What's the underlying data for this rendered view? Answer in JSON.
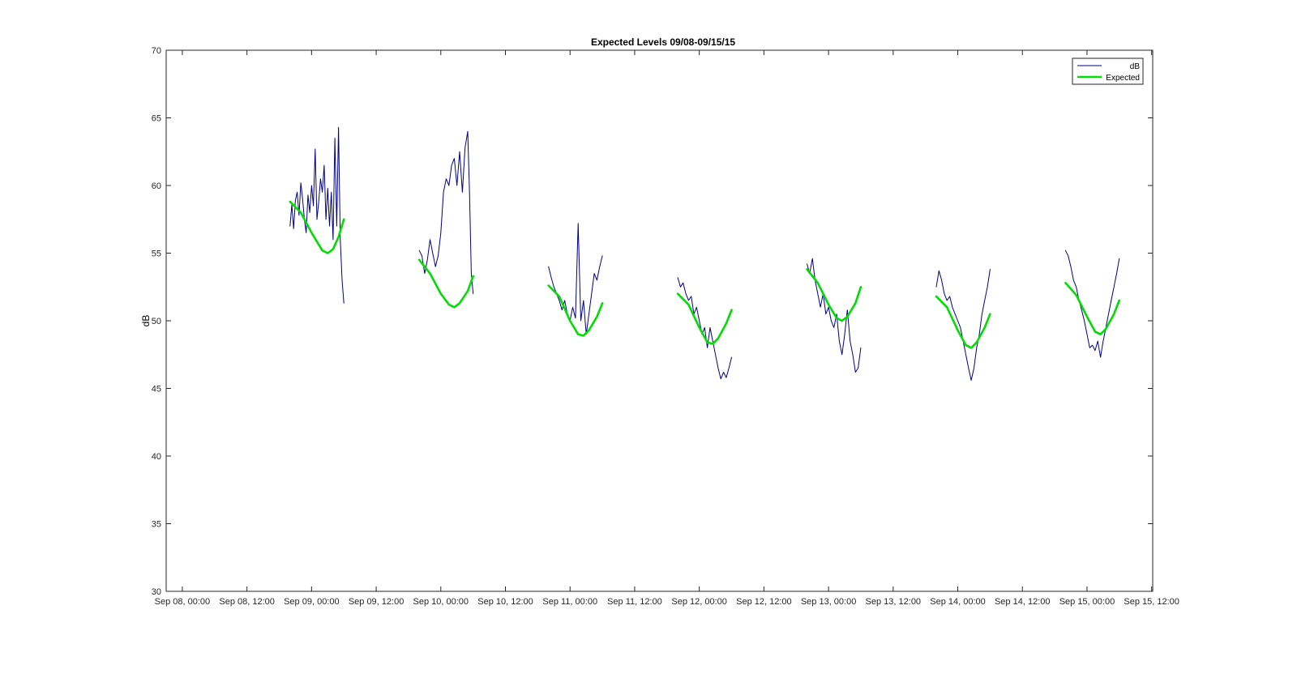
{
  "chart_data": {
    "type": "line",
    "title": "Expected Levels 09/08-09/15/15",
    "xlabel": "",
    "ylabel": "dB",
    "ylim": [
      30,
      70
    ],
    "xlim": [
      "Sep 08, 00:00",
      "Sep 15, 12:00"
    ],
    "yticks": [
      30,
      35,
      40,
      45,
      50,
      55,
      60,
      65,
      70
    ],
    "xticks": [
      "Sep 08, 00:00",
      "Sep 08, 12:00",
      "Sep 09, 00:00",
      "Sep 09, 12:00",
      "Sep 10, 00:00",
      "Sep 10, 12:00",
      "Sep 11, 00:00",
      "Sep 11, 12:00",
      "Sep 12, 00:00",
      "Sep 12, 12:00",
      "Sep 13, 00:00",
      "Sep 13, 12:00",
      "Sep 14, 00:00",
      "Sep 14, 12:00",
      "Sep 15, 00:00",
      "Sep 15, 12:00"
    ],
    "legend_position": "top-right",
    "grid": false,
    "series": [
      {
        "name": "dB",
        "color": "#00008b",
        "segments": [
          [
            [
              "Sep 08, 20:00",
              57.0
            ],
            [
              "Sep 08, 20:20",
              58.6
            ],
            [
              "Sep 08, 20:40",
              56.8
            ],
            [
              "Sep 08, 21:00",
              58.9
            ],
            [
              "Sep 08, 21:20",
              59.5
            ],
            [
              "Sep 08, 21:40",
              57.8
            ],
            [
              "Sep 08, 22:00",
              60.2
            ],
            [
              "Sep 08, 22:20",
              59.0
            ],
            [
              "Sep 08, 22:40",
              57.5
            ],
            [
              "Sep 08, 23:00",
              56.5
            ],
            [
              "Sep 08, 23:20",
              59.3
            ],
            [
              "Sep 08, 23:40",
              58.0
            ],
            [
              "Sep 09, 00:00",
              60.0
            ],
            [
              "Sep 09, 00:20",
              58.5
            ],
            [
              "Sep 09, 00:40",
              62.7
            ],
            [
              "Sep 09, 01:00",
              57.5
            ],
            [
              "Sep 09, 01:20",
              58.8
            ],
            [
              "Sep 09, 01:40",
              60.5
            ],
            [
              "Sep 09, 02:00",
              59.5
            ],
            [
              "Sep 09, 02:20",
              61.5
            ],
            [
              "Sep 09, 02:40",
              57.5
            ],
            [
              "Sep 09, 03:00",
              59.8
            ],
            [
              "Sep 09, 03:20",
              57.0
            ],
            [
              "Sep 09, 03:40",
              59.5
            ],
            [
              "Sep 09, 04:00",
              56.0
            ],
            [
              "Sep 09, 04:20",
              63.5
            ],
            [
              "Sep 09, 04:40",
              57.0
            ],
            [
              "Sep 09, 05:00",
              64.3
            ],
            [
              "Sep 09, 05:20",
              56.0
            ],
            [
              "Sep 09, 05:40",
              53.0
            ],
            [
              "Sep 09, 06:00",
              51.3
            ]
          ],
          [
            [
              "Sep 09, 20:00",
              55.2
            ],
            [
              "Sep 09, 20:30",
              54.8
            ],
            [
              "Sep 09, 21:00",
              53.5
            ],
            [
              "Sep 09, 21:30",
              54.5
            ],
            [
              "Sep 09, 22:00",
              56.0
            ],
            [
              "Sep 09, 22:30",
              55.0
            ],
            [
              "Sep 09, 23:00",
              54.0
            ],
            [
              "Sep 09, 23:30",
              54.8
            ],
            [
              "Sep 10, 00:00",
              56.5
            ],
            [
              "Sep 10, 00:30",
              59.5
            ],
            [
              "Sep 10, 01:00",
              60.5
            ],
            [
              "Sep 10, 01:30",
              60.0
            ],
            [
              "Sep 10, 02:00",
              61.5
            ],
            [
              "Sep 10, 02:30",
              62.0
            ],
            [
              "Sep 10, 03:00",
              60.0
            ],
            [
              "Sep 10, 03:30",
              62.5
            ],
            [
              "Sep 10, 04:00",
              59.5
            ],
            [
              "Sep 10, 04:30",
              62.8
            ],
            [
              "Sep 10, 05:00",
              64.0
            ],
            [
              "Sep 10, 05:20",
              59.5
            ],
            [
              "Sep 10, 05:40",
              53.5
            ],
            [
              "Sep 10, 06:00",
              52.0
            ]
          ],
          [
            [
              "Sep 10, 20:00",
              54.0
            ],
            [
              "Sep 10, 20:30",
              53.2
            ],
            [
              "Sep 10, 21:00",
              52.5
            ],
            [
              "Sep 10, 21:30",
              52.0
            ],
            [
              "Sep 10, 22:00",
              51.5
            ],
            [
              "Sep 10, 22:30",
              50.8
            ],
            [
              "Sep 10, 23:00",
              51.5
            ],
            [
              "Sep 10, 23:30",
              50.5
            ],
            [
              "Sep 11, 00:00",
              50.0
            ],
            [
              "Sep 11, 00:30",
              51.0
            ],
            [
              "Sep 11, 01:00",
              50.2
            ],
            [
              "Sep 11, 01:30",
              57.2
            ],
            [
              "Sep 11, 02:00",
              50.0
            ],
            [
              "Sep 11, 02:30",
              51.5
            ],
            [
              "Sep 11, 03:00",
              49.0
            ],
            [
              "Sep 11, 03:30",
              50.5
            ],
            [
              "Sep 11, 04:00",
              52.0
            ],
            [
              "Sep 11, 04:30",
              53.5
            ],
            [
              "Sep 11, 05:00",
              53.0
            ],
            [
              "Sep 11, 05:30",
              54.0
            ],
            [
              "Sep 11, 06:00",
              54.8
            ]
          ],
          [
            [
              "Sep 11, 20:00",
              53.2
            ],
            [
              "Sep 11, 20:30",
              52.5
            ],
            [
              "Sep 11, 21:00",
              52.8
            ],
            [
              "Sep 11, 21:30",
              52.0
            ],
            [
              "Sep 11, 22:00",
              51.5
            ],
            [
              "Sep 11, 22:30",
              51.8
            ],
            [
              "Sep 11, 23:00",
              50.5
            ],
            [
              "Sep 11, 23:30",
              51.0
            ],
            [
              "Sep 12, 00:00",
              50.0
            ],
            [
              "Sep 12, 00:30",
              49.0
            ],
            [
              "Sep 12, 01:00",
              49.5
            ],
            [
              "Sep 12, 01:30",
              48.0
            ],
            [
              "Sep 12, 02:00",
              49.5
            ],
            [
              "Sep 12, 02:30",
              48.5
            ],
            [
              "Sep 12, 03:00",
              47.5
            ],
            [
              "Sep 12, 03:30",
              46.5
            ],
            [
              "Sep 12, 04:00",
              45.7
            ],
            [
              "Sep 12, 04:30",
              46.2
            ],
            [
              "Sep 12, 05:00",
              45.8
            ],
            [
              "Sep 12, 05:30",
              46.5
            ],
            [
              "Sep 12, 06:00",
              47.3
            ]
          ],
          [
            [
              "Sep 12, 20:00",
              54.2
            ],
            [
              "Sep 12, 20:30",
              53.5
            ],
            [
              "Sep 12, 21:00",
              54.6
            ],
            [
              "Sep 12, 21:30",
              53.0
            ],
            [
              "Sep 12, 22:00",
              52.0
            ],
            [
              "Sep 12, 22:30",
              51.0
            ],
            [
              "Sep 12, 23:00",
              52.0
            ],
            [
              "Sep 12, 23:30",
              50.5
            ],
            [
              "Sep 13, 00:00",
              51.0
            ],
            [
              "Sep 13, 00:30",
              50.0
            ],
            [
              "Sep 13, 01:00",
              49.5
            ],
            [
              "Sep 13, 01:30",
              50.5
            ],
            [
              "Sep 13, 02:00",
              48.5
            ],
            [
              "Sep 13, 02:30",
              47.5
            ],
            [
              "Sep 13, 03:00",
              49.0
            ],
            [
              "Sep 13, 03:30",
              50.8
            ],
            [
              "Sep 13, 04:00",
              48.5
            ],
            [
              "Sep 13, 04:30",
              47.5
            ],
            [
              "Sep 13, 05:00",
              46.2
            ],
            [
              "Sep 13, 05:30",
              46.5
            ],
            [
              "Sep 13, 06:00",
              48.0
            ]
          ],
          [
            [
              "Sep 13, 20:00",
              52.5
            ],
            [
              "Sep 13, 20:30",
              53.7
            ],
            [
              "Sep 13, 21:00",
              53.0
            ],
            [
              "Sep 13, 21:30",
              52.0
            ],
            [
              "Sep 13, 22:00",
              51.5
            ],
            [
              "Sep 13, 22:30",
              51.8
            ],
            [
              "Sep 13, 23:00",
              51.0
            ],
            [
              "Sep 13, 23:30",
              50.5
            ],
            [
              "Sep 14, 00:00",
              50.0
            ],
            [
              "Sep 14, 00:30",
              49.5
            ],
            [
              "Sep 14, 01:00",
              48.5
            ],
            [
              "Sep 14, 01:30",
              47.5
            ],
            [
              "Sep 14, 02:00",
              46.5
            ],
            [
              "Sep 14, 02:30",
              45.6
            ],
            [
              "Sep 14, 03:00",
              46.5
            ],
            [
              "Sep 14, 03:30",
              48.0
            ],
            [
              "Sep 14, 04:00",
              49.0
            ],
            [
              "Sep 14, 04:30",
              50.5
            ],
            [
              "Sep 14, 05:00",
              51.5
            ],
            [
              "Sep 14, 05:30",
              52.5
            ],
            [
              "Sep 14, 06:00",
              53.8
            ]
          ],
          [
            [
              "Sep 14, 20:00",
              55.2
            ],
            [
              "Sep 14, 20:30",
              54.8
            ],
            [
              "Sep 14, 21:00",
              54.0
            ],
            [
              "Sep 14, 21:30",
              53.0
            ],
            [
              "Sep 14, 22:00",
              52.5
            ],
            [
              "Sep 14, 22:30",
              51.5
            ],
            [
              "Sep 14, 23:00",
              50.8
            ],
            [
              "Sep 14, 23:30",
              50.0
            ],
            [
              "Sep 15, 00:00",
              49.0
            ],
            [
              "Sep 15, 00:30",
              48.0
            ],
            [
              "Sep 15, 01:00",
              48.2
            ],
            [
              "Sep 15, 01:30",
              47.8
            ],
            [
              "Sep 15, 02:00",
              48.5
            ],
            [
              "Sep 15, 02:30",
              47.3
            ],
            [
              "Sep 15, 03:00",
              48.5
            ],
            [
              "Sep 15, 03:30",
              49.5
            ],
            [
              "Sep 15, 04:00",
              50.5
            ],
            [
              "Sep 15, 04:30",
              51.5
            ],
            [
              "Sep 15, 05:00",
              52.5
            ],
            [
              "Sep 15, 05:30",
              53.5
            ],
            [
              "Sep 15, 06:00",
              54.6
            ]
          ]
        ]
      },
      {
        "name": "Expected",
        "color": "#00dd00",
        "segments": [
          [
            [
              "Sep 08, 20:00",
              58.8
            ],
            [
              "Sep 08, 22:00",
              58.0
            ],
            [
              "Sep 09, 00:00",
              56.5
            ],
            [
              "Sep 09, 02:00",
              55.2
            ],
            [
              "Sep 09, 03:00",
              55.0
            ],
            [
              "Sep 09, 04:00",
              55.3
            ],
            [
              "Sep 09, 05:00",
              56.2
            ],
            [
              "Sep 09, 06:00",
              57.5
            ]
          ],
          [
            [
              "Sep 09, 20:00",
              54.5
            ],
            [
              "Sep 09, 22:00",
              53.5
            ],
            [
              "Sep 10, 00:00",
              52.0
            ],
            [
              "Sep 10, 01:30",
              51.2
            ],
            [
              "Sep 10, 02:30",
              51.0
            ],
            [
              "Sep 10, 03:30",
              51.3
            ],
            [
              "Sep 10, 05:00",
              52.2
            ],
            [
              "Sep 10, 06:00",
              53.3
            ]
          ],
          [
            [
              "Sep 10, 20:00",
              52.6
            ],
            [
              "Sep 10, 22:00",
              51.8
            ],
            [
              "Sep 11, 00:00",
              50.0
            ],
            [
              "Sep 11, 01:30",
              49.0
            ],
            [
              "Sep 11, 02:30",
              48.9
            ],
            [
              "Sep 11, 03:30",
              49.3
            ],
            [
              "Sep 11, 05:00",
              50.3
            ],
            [
              "Sep 11, 06:00",
              51.3
            ]
          ],
          [
            [
              "Sep 11, 20:00",
              52.0
            ],
            [
              "Sep 11, 22:00",
              51.2
            ],
            [
              "Sep 12, 00:00",
              49.5
            ],
            [
              "Sep 12, 01:30",
              48.4
            ],
            [
              "Sep 12, 02:30",
              48.3
            ],
            [
              "Sep 12, 03:30",
              48.7
            ],
            [
              "Sep 12, 05:00",
              49.8
            ],
            [
              "Sep 12, 06:00",
              50.8
            ]
          ],
          [
            [
              "Sep 12, 20:00",
              53.8
            ],
            [
              "Sep 12, 22:00",
              52.8
            ],
            [
              "Sep 13, 00:00",
              51.2
            ],
            [
              "Sep 13, 01:30",
              50.2
            ],
            [
              "Sep 13, 02:30",
              50.0
            ],
            [
              "Sep 13, 03:30",
              50.3
            ],
            [
              "Sep 13, 05:00",
              51.3
            ],
            [
              "Sep 13, 06:00",
              52.5
            ]
          ],
          [
            [
              "Sep 13, 20:00",
              51.8
            ],
            [
              "Sep 13, 22:00",
              51.0
            ],
            [
              "Sep 14, 00:00",
              49.3
            ],
            [
              "Sep 14, 01:30",
              48.2
            ],
            [
              "Sep 14, 02:30",
              48.0
            ],
            [
              "Sep 14, 03:30",
              48.4
            ],
            [
              "Sep 14, 05:00",
              49.5
            ],
            [
              "Sep 14, 06:00",
              50.5
            ]
          ],
          [
            [
              "Sep 14, 20:00",
              52.8
            ],
            [
              "Sep 14, 22:00",
              51.9
            ],
            [
              "Sep 15, 00:00",
              50.3
            ],
            [
              "Sep 15, 01:30",
              49.2
            ],
            [
              "Sep 15, 02:30",
              49.0
            ],
            [
              "Sep 15, 03:30",
              49.4
            ],
            [
              "Sep 15, 05:00",
              50.5
            ],
            [
              "Sep 15, 06:00",
              51.5
            ]
          ]
        ]
      }
    ]
  }
}
